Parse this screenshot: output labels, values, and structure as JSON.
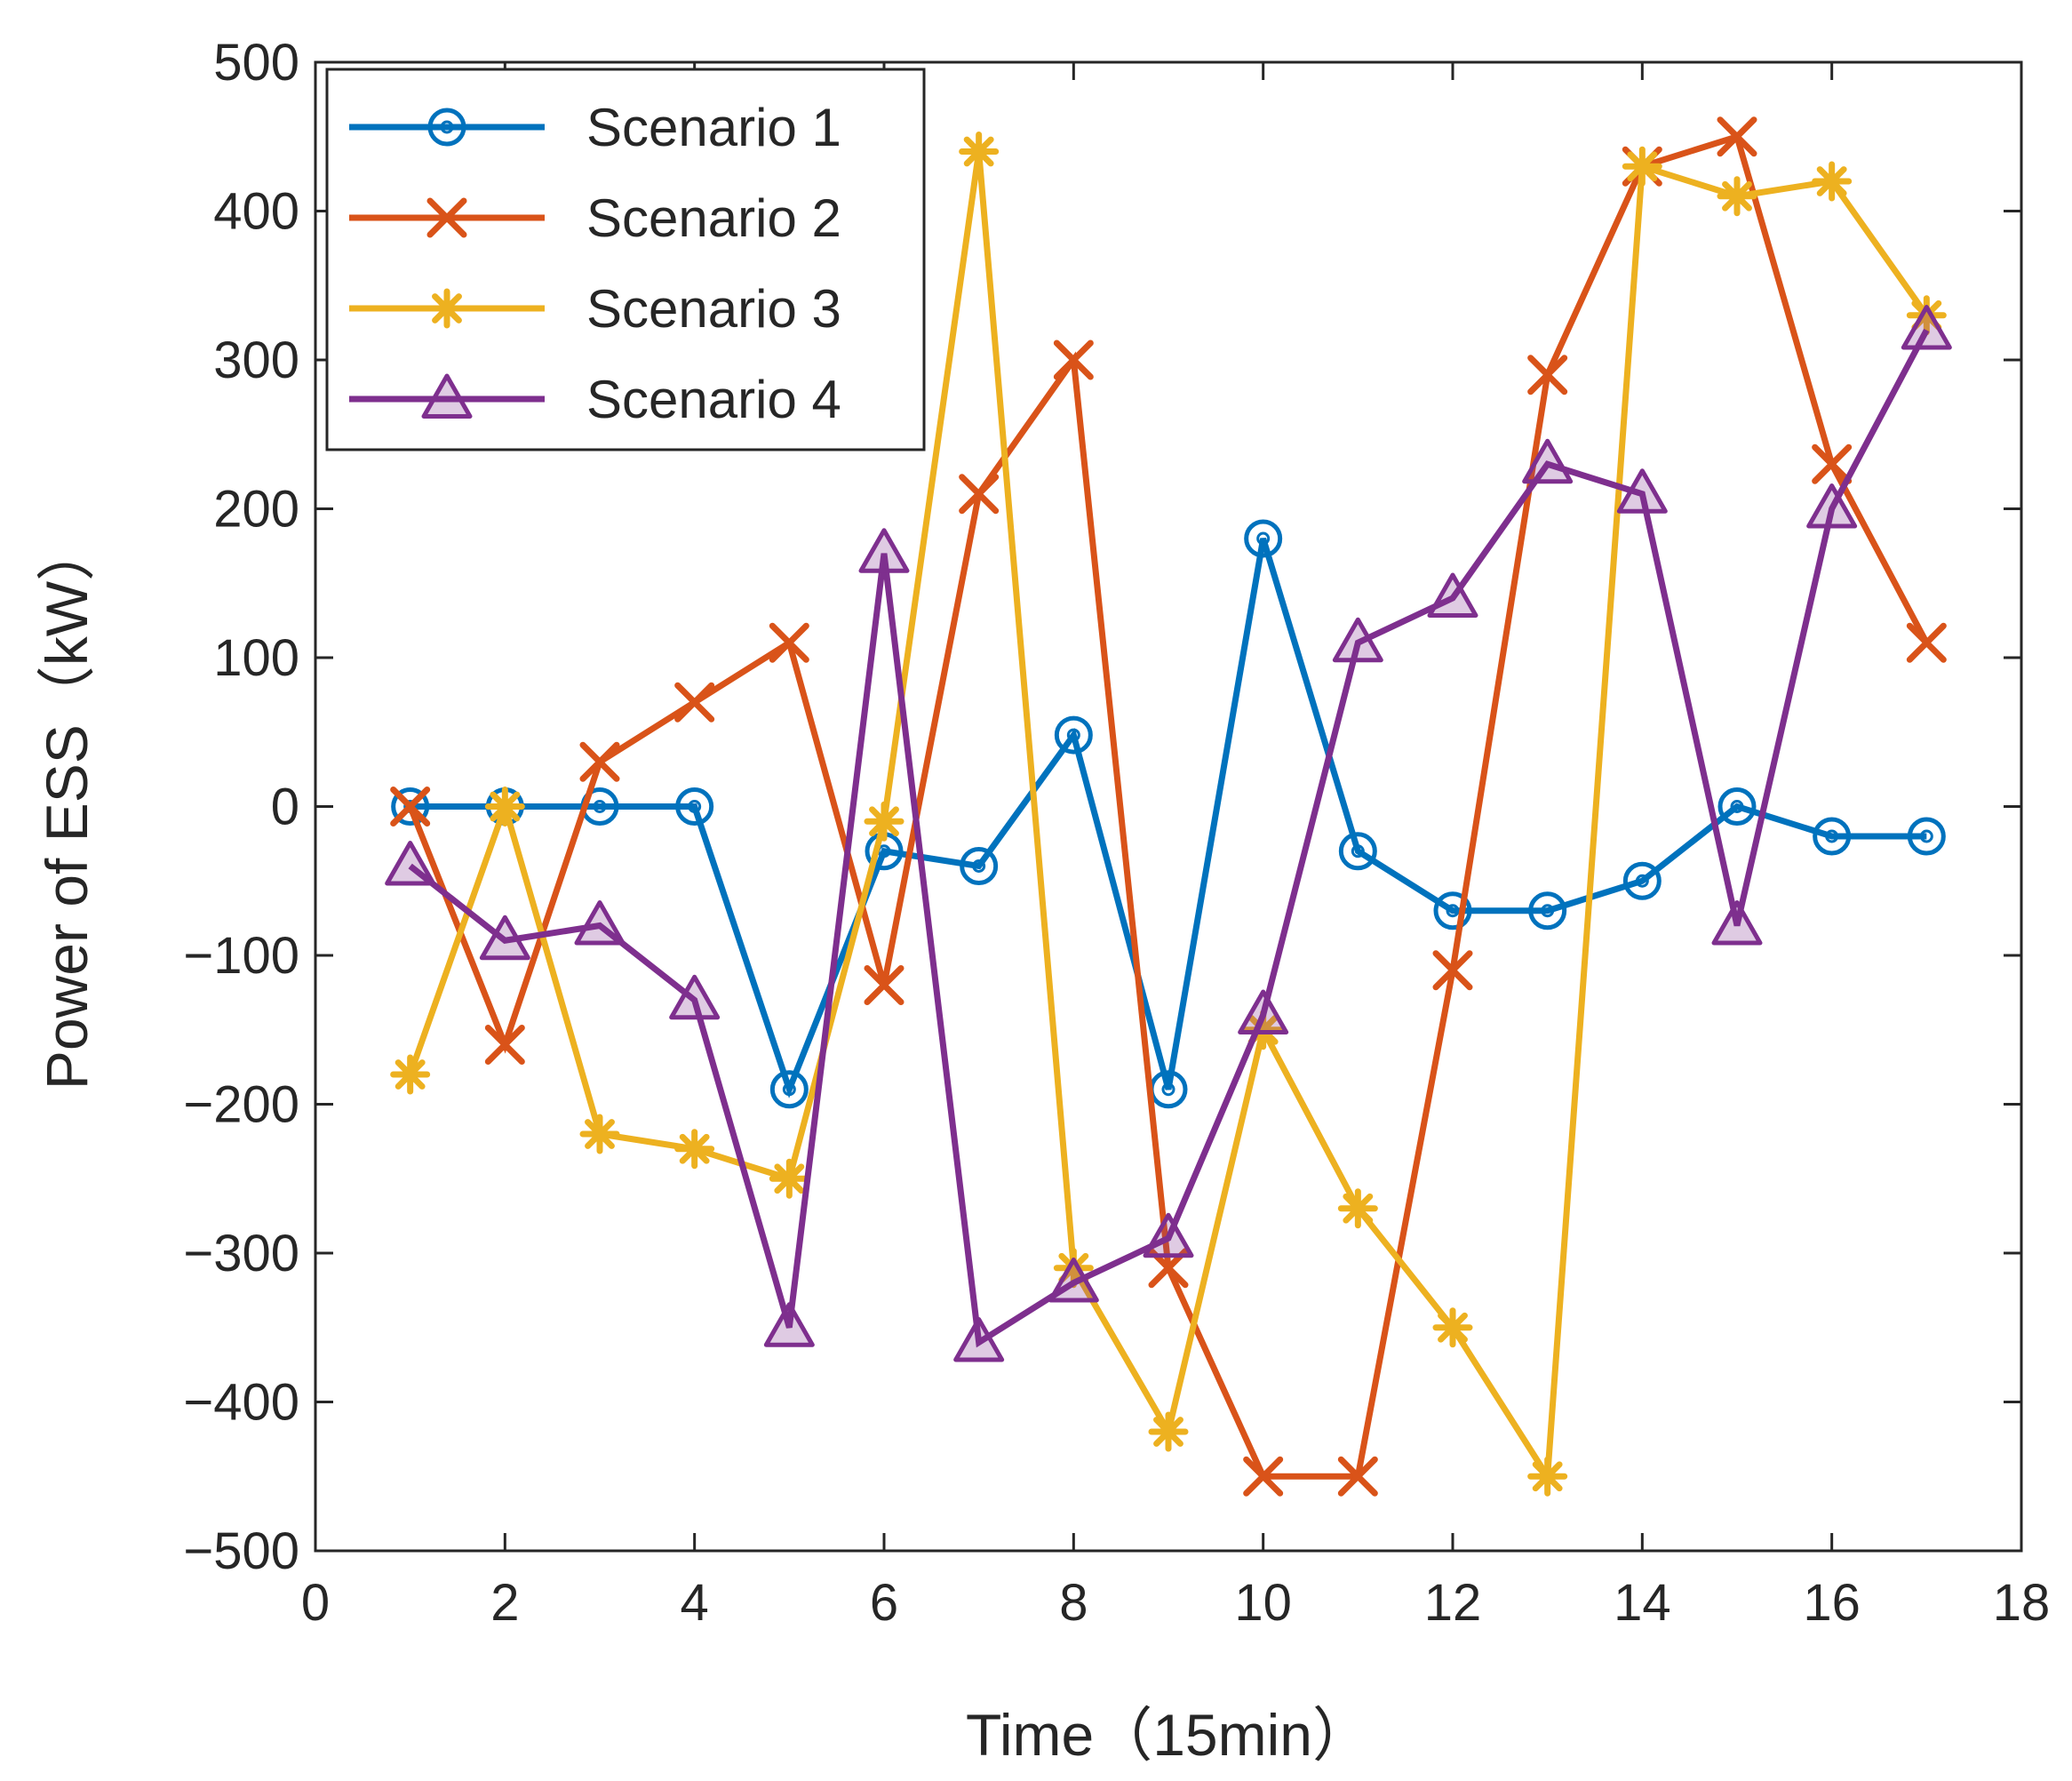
{
  "chart_data": {
    "type": "line",
    "title": "",
    "xlabel": "Time（15min）",
    "ylabel": "Power of ESS（kW）",
    "xlim": [
      0,
      18
    ],
    "ylim": [
      -500,
      500
    ],
    "xticks": [
      "0",
      "2",
      "4",
      "6",
      "8",
      "10",
      "12",
      "14",
      "16",
      "18"
    ],
    "yticks": [
      "500",
      "400",
      "300",
      "200",
      "100",
      "0",
      "−100",
      "−200",
      "−300",
      "−400",
      "−500"
    ],
    "grid": false,
    "legend_position": "top-left",
    "x": [
      1,
      2,
      3,
      4,
      5,
      6,
      7,
      8,
      9,
      10,
      11,
      12,
      13,
      14,
      15,
      16,
      17
    ],
    "series": [
      {
        "name": "Scenario 1",
        "marker": "circle",
        "color": "#0072BD",
        "values": [
          0,
          0,
          0,
          0,
          -190,
          -30,
          -40,
          48,
          -190,
          180,
          -30,
          -70,
          -70,
          -50,
          0,
          -20,
          -20
        ]
      },
      {
        "name": "Scenario 2",
        "marker": "x",
        "color": "#D95319",
        "values": [
          0,
          -160,
          30,
          70,
          110,
          -120,
          210,
          300,
          -310,
          -450,
          -450,
          -110,
          290,
          430,
          450,
          230,
          110
        ]
      },
      {
        "name": "Scenario 3",
        "marker": "asterisk",
        "color": "#EDB120",
        "values": [
          -180,
          0,
          -220,
          -230,
          -250,
          -10,
          440,
          -310,
          -420,
          -150,
          -270,
          -350,
          -450,
          430,
          410,
          420,
          330
        ]
      },
      {
        "name": "Scenario 4",
        "marker": "triangle",
        "color": "#7E2F8E",
        "values": [
          -40,
          -90,
          -80,
          -130,
          -350,
          170,
          -360,
          -320,
          -290,
          -140,
          110,
          140,
          230,
          210,
          -80,
          200,
          320
        ]
      }
    ]
  }
}
